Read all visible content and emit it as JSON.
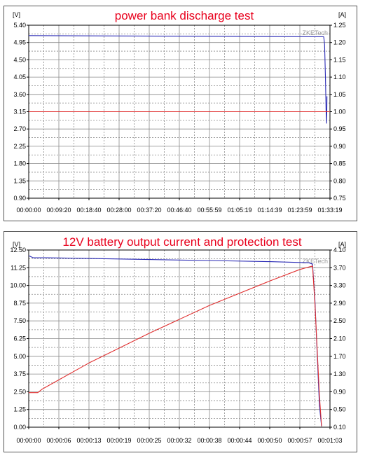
{
  "colors": {
    "voltage": "#2b2bb5",
    "current": "#e03030",
    "title": "#e8001c",
    "grid_solid": "#8a8a8a",
    "grid_dash": "#8a8a8a",
    "axis": "#000000"
  },
  "chart_data": [
    {
      "type": "line",
      "title": "power bank discharge test",
      "watermark": "ZKETech",
      "y_left_unit": "[V]",
      "y_right_unit": "[A]",
      "ylim_left": [
        0.9,
        5.4
      ],
      "ylim_right": [
        0.75,
        1.25
      ],
      "y_left_ticks": [
        "5.40",
        "4.95",
        "4.50",
        "4.05",
        "3.60",
        "3.15",
        "2.70",
        "2.25",
        "1.80",
        "1.35",
        "0.90"
      ],
      "y_right_ticks": [
        "1.25",
        "1.20",
        "1.15",
        "1.10",
        "1.05",
        "1.00",
        "0.95",
        "0.90",
        "0.85",
        "0.80",
        "0.75"
      ],
      "x_ticks": [
        "00:00:00",
        "00:09:20",
        "00:18:40",
        "00:28:00",
        "00:37:20",
        "00:46:40",
        "00:55:59",
        "01:05:19",
        "01:14:39",
        "01:23:59",
        "01:33:19"
      ],
      "xlim": [
        0,
        10
      ],
      "grid": true,
      "series": [
        {
          "axis": "left",
          "color_key": "voltage",
          "x": [
            0,
            9.79,
            9.8,
            9.82,
            9.85,
            9.87,
            9.89,
            9.9
          ],
          "y": [
            5.13,
            5.1,
            5.05,
            4.9,
            4.0,
            3.2,
            2.85,
            3.55
          ]
        },
        {
          "axis": "right",
          "color_key": "current",
          "x": [
            0,
            10
          ],
          "y": [
            1.0,
            1.0
          ]
        }
      ]
    },
    {
      "type": "line",
      "title": "12V battery output current and protection test",
      "watermark": "ZKETech",
      "y_left_unit": "[V]",
      "y_right_unit": "[A]",
      "ylim_left": [
        0.0,
        12.5
      ],
      "ylim_right": [
        0.1,
        4.1
      ],
      "y_left_ticks": [
        "12.50",
        "11.25",
        "10.00",
        "8.75",
        "7.50",
        "6.25",
        "5.00",
        "3.75",
        "2.50",
        "1.25",
        "0.00"
      ],
      "y_right_ticks": [
        "4.10",
        "3.70",
        "3.30",
        "2.90",
        "2.50",
        "2.10",
        "1.70",
        "1.30",
        "0.90",
        "0.50",
        "0.10"
      ],
      "x_ticks": [
        "00:00:00",
        "00:00:06",
        "00:00:13",
        "00:00:19",
        "00:00:25",
        "00:00:32",
        "00:00:38",
        "00:00:44",
        "00:00:50",
        "00:00:57",
        "00:01:03"
      ],
      "xlim": [
        0,
        10
      ],
      "grid": true,
      "series": [
        {
          "axis": "left",
          "color_key": "voltage",
          "x": [
            0,
            0.15,
            0.6,
            2,
            4,
            6,
            8,
            9.3,
            9.42,
            9.5,
            9.58,
            9.65,
            9.72
          ],
          "y": [
            12.1,
            11.95,
            11.95,
            11.9,
            11.83,
            11.76,
            11.68,
            11.6,
            11.5,
            9.0,
            5.0,
            1.5,
            0.05
          ]
        },
        {
          "axis": "right",
          "color_key": "current",
          "x": [
            0,
            0.3,
            0.45,
            2,
            4,
            6,
            8,
            9.0,
            9.42,
            9.5,
            9.58,
            9.65,
            9.72
          ],
          "y": [
            0.88,
            0.88,
            0.96,
            1.55,
            2.22,
            2.85,
            3.4,
            3.66,
            3.74,
            2.9,
            1.8,
            0.8,
            0.12
          ]
        }
      ]
    }
  ]
}
